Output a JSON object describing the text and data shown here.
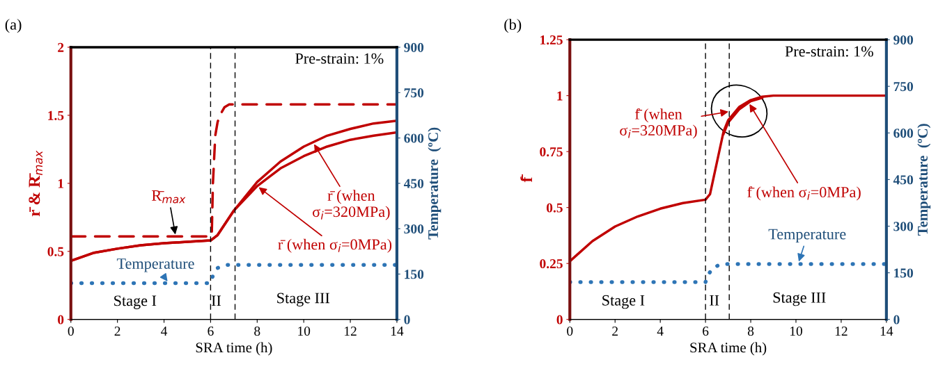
{
  "chart_data": [
    {
      "type": "line",
      "title": "(a)",
      "xlabel": "SRA time (h)",
      "ylabel": "r̄ & R̄$_{max}$",
      "y2label": "Temperature  (ºC)",
      "xlim": [
        0,
        14
      ],
      "xticks": [
        0,
        2,
        4,
        6,
        8,
        10,
        12,
        14
      ],
      "ylim": [
        0,
        2
      ],
      "yticks": [
        0,
        0.5,
        1,
        1.5,
        2
      ],
      "y2lim": [
        0,
        900
      ],
      "y2ticks": [
        0,
        150,
        300,
        450,
        600,
        750,
        900
      ],
      "grid": false,
      "legend": false,
      "series": [
        {
          "color": "#c00000",
          "line_style": "dashed",
          "x": [
            0,
            6,
            6.05,
            6.1,
            6.2,
            6.3,
            6.4,
            6.6,
            6.8,
            7,
            14
          ],
          "values": [
            0.61,
            0.61,
            0.62,
            1.0,
            1.35,
            1.45,
            1.5,
            1.56,
            1.58,
            1.58,
            1.58
          ]
        },
        {
          "color": "#c00000",
          "line_style": "solid",
          "x": [
            0,
            1,
            2,
            3,
            4,
            5,
            6,
            6.3,
            7,
            8,
            9,
            10,
            11,
            12,
            13,
            14
          ],
          "values": [
            0.43,
            0.49,
            0.52,
            0.545,
            0.56,
            0.57,
            0.58,
            0.62,
            0.8,
            1.01,
            1.16,
            1.27,
            1.35,
            1.4,
            1.44,
            1.46
          ]
        },
        {
          "color": "#c00000",
          "line_style": "solid",
          "x": [
            0,
            1,
            2,
            3,
            4,
            5,
            6,
            6.3,
            7,
            8,
            9,
            10,
            11,
            12,
            13,
            14
          ],
          "values": [
            0.43,
            0.49,
            0.52,
            0.545,
            0.56,
            0.57,
            0.58,
            0.62,
            0.8,
            0.98,
            1.11,
            1.2,
            1.27,
            1.32,
            1.35,
            1.375
          ]
        },
        {
          "color": "#2e75b6",
          "line_style": "dotted",
          "axis": "y2",
          "x": [
            0,
            6,
            6.1,
            6.3,
            6.7,
            14
          ],
          "values": [
            120,
            120,
            145,
            170,
            180,
            180
          ]
        }
      ],
      "ref_lines": [
        {
          "axis": "x",
          "value": 6,
          "color": "#000000",
          "line_style": "dashed"
        },
        {
          "axis": "x",
          "value": 7.05,
          "color": "#000000",
          "line_style": "dashed"
        }
      ],
      "annotations": [
        "Pre-strain: 1%",
        "Stage I",
        "II",
        "Stage III",
        {
          "text": "R̄$_{max}$",
          "x": 4.5,
          "y": 0.61
        },
        {
          "text": "r̄ (when\nσ$_{i}$=320MPa)",
          "x": 10.4,
          "y": 1.3
        },
        {
          "text": "r̄ (when σ$_{i}$=0MPa)",
          "x": 8.0,
          "y": 0.98
        },
        {
          "text": "Temperature",
          "x": 4.2,
          "y": 0.267
        }
      ]
    },
    {
      "type": "line",
      "title": "(b)",
      "xlabel": "SRA time (h)",
      "ylabel": "f̄",
      "y2label": "Temperature  (ºC)",
      "xlim": [
        0,
        14
      ],
      "xticks": [
        0,
        2,
        4,
        6,
        8,
        10,
        12,
        14
      ],
      "ylim": [
        0,
        1.25
      ],
      "yticks": [
        0,
        0.25,
        0.5,
        0.75,
        1,
        1.25
      ],
      "y2lim": [
        0,
        900
      ],
      "y2ticks": [
        0,
        150,
        300,
        450,
        600,
        750,
        900
      ],
      "grid": false,
      "legend": false,
      "series": [
        {
          "color": "#c00000",
          "line_style": "solid",
          "x": [
            0,
            1,
            2,
            3,
            4,
            5,
            6,
            6.2,
            6.5,
            6.8,
            7,
            7.5,
            8,
            8.5,
            9,
            14
          ],
          "values": [
            0.26,
            0.35,
            0.415,
            0.46,
            0.495,
            0.52,
            0.535,
            0.56,
            0.7,
            0.84,
            0.89,
            0.95,
            0.98,
            0.995,
            1.0,
            1.0
          ]
        },
        {
          "color": "#c00000",
          "line_style": "solid",
          "x": [
            6.8,
            7,
            7.5,
            8,
            8.5
          ],
          "values": [
            0.83,
            0.88,
            0.94,
            0.975,
            0.99
          ]
        },
        {
          "color": "#2e75b6",
          "line_style": "dotted",
          "axis": "y2",
          "x": [
            0,
            6,
            6.1,
            6.3,
            6.7,
            14
          ],
          "values": [
            120,
            120,
            140,
            165,
            178,
            178
          ]
        }
      ],
      "ref_lines": [
        {
          "axis": "x",
          "value": 6,
          "color": "#000000",
          "line_style": "dashed"
        },
        {
          "axis": "x",
          "value": 7.05,
          "color": "#000000",
          "line_style": "dashed"
        }
      ],
      "annotations": [
        "Pre-strain: 1%",
        "Stage I",
        "II",
        "Stage III",
        {
          "text": "f̄ (when\nσ$_{i}$=320MPa)",
          "x": 7.1,
          "y": 0.93
        },
        {
          "text": "f̄ (when σ$_{i}$=0MPa)",
          "x": 7.9,
          "y": 0.97
        },
        {
          "text": "Temperature",
          "x": 10.1,
          "y": 0.25
        }
      ]
    }
  ]
}
